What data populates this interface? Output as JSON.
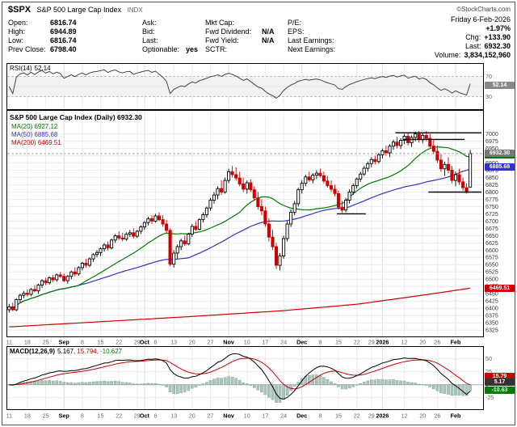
{
  "header": {
    "symbol": "$SPX",
    "name": "S&P 500 Large Cap Index",
    "exchange": "INDX",
    "copyright": "©StockCharts.com",
    "date": "Friday 6-Feb-2026",
    "pct_change": "+1.97%",
    "quote": {
      "c1": [
        {
          "l": "Open:",
          "v": "6816.74"
        },
        {
          "l": "High:",
          "v": "6944.89"
        },
        {
          "l": "Low:",
          "v": "6816.74"
        },
        {
          "l": "Prev Close:",
          "v": "6798.40"
        }
      ],
      "c2": [
        {
          "l": "Ask:",
          "v": ""
        },
        {
          "l": "Bid:",
          "v": ""
        },
        {
          "l": "Last:",
          "v": ""
        },
        {
          "l": "Optionable:",
          "v": "yes"
        }
      ],
      "c3": [
        {
          "l": "Mkt Cap:",
          "v": ""
        },
        {
          "l": "Fwd Dividend:",
          "v": "N/A"
        },
        {
          "l": "Fwd Yield:",
          "v": "N/A"
        },
        {
          "l": "SCTR:",
          "v": ""
        }
      ],
      "c4": [
        {
          "l": "P/E:",
          "v": ""
        },
        {
          "l": "EPS:",
          "v": ""
        },
        {
          "l": "Last Earnings:",
          "v": ""
        },
        {
          "l": "Next Earnings:",
          "v": ""
        }
      ],
      "c5": [
        {
          "l": "Chg:",
          "v": "+133.90"
        },
        {
          "l": "Last:",
          "v": "6932.30"
        },
        {
          "l": "Volume:",
          "v": "3,834,152,960"
        }
      ]
    }
  },
  "chart_data": {
    "type": "candlestick",
    "title": "S&P 500 Large Cap Index (Daily) 6932.30",
    "y_min": 6325,
    "y_max": 7000,
    "y_step": 25,
    "overlays": [
      {
        "label": "MA(20) 6927.12",
        "color": "#007a00"
      },
      {
        "label": "MA(50) 6885.68",
        "color": "#3333cc"
      },
      {
        "label": "MA(200) 6469.51",
        "color": "#cc0000"
      }
    ],
    "rsi": {
      "label": "RSI(14)",
      "value": "52.14",
      "bands": [
        70,
        30
      ]
    },
    "rsi_box": {
      "v": "52.14",
      "p": 52.14,
      "bg": "#888888"
    },
    "macd": {
      "label": "MACD(12,26,9)",
      "values": [
        {
          "t": "5.167,",
          "c": "#000000"
        },
        {
          "t": "15.794,",
          "c": "#cc0000"
        },
        {
          "t": "-10.627",
          "c": "#007a00"
        }
      ]
    },
    "macd_boxes": [
      {
        "v": "15.79",
        "p": 15.794,
        "bg": "#cc0000"
      },
      {
        "v": "5.17",
        "p": 5.167,
        "bg": "#333333"
      },
      {
        "v": "-10.63",
        "p": -10.627,
        "bg": "#007a00"
      }
    ],
    "price_boxes": [
      {
        "v": "6932.30",
        "p": 6932.3,
        "bg": "#777777"
      },
      {
        "v": "6927.12",
        "p": 6927.12,
        "bg": "#007a00"
      },
      {
        "v": "6885.68",
        "p": 6885.68,
        "bg": "#3333cc"
      },
      {
        "v": "6469.51",
        "p": 6469.51,
        "bg": "#cc0000"
      }
    ],
    "ticks": [
      {
        "i": 0,
        "t": "11"
      },
      {
        "i": 5,
        "t": "18"
      },
      {
        "i": 10,
        "t": "25"
      },
      {
        "i": 15,
        "t": "Sep",
        "m": 1
      },
      {
        "i": 20,
        "t": "8"
      },
      {
        "i": 25,
        "t": "15"
      },
      {
        "i": 30,
        "t": "22"
      },
      {
        "i": 35,
        "t": "29"
      },
      {
        "i": 37,
        "t": "Oct",
        "m": 1
      },
      {
        "i": 40,
        "t": "6"
      },
      {
        "i": 45,
        "t": "13"
      },
      {
        "i": 50,
        "t": "20"
      },
      {
        "i": 55,
        "t": "27"
      },
      {
        "i": 60,
        "t": "Nov",
        "m": 1
      },
      {
        "i": 65,
        "t": "10"
      },
      {
        "i": 70,
        "t": "17"
      },
      {
        "i": 75,
        "t": "24"
      },
      {
        "i": 80,
        "t": "Dec",
        "m": 1
      },
      {
        "i": 85,
        "t": "8"
      },
      {
        "i": 90,
        "t": "15"
      },
      {
        "i": 95,
        "t": "22"
      },
      {
        "i": 99,
        "t": "29"
      },
      {
        "i": 102,
        "t": "2026",
        "m": 1
      },
      {
        "i": 108,
        "t": "12"
      },
      {
        "i": 113,
        "t": "20"
      },
      {
        "i": 117,
        "t": "26"
      },
      {
        "i": 122,
        "t": "Feb",
        "m": 1
      }
    ],
    "annotations": {
      "last_price_line": 6932.3,
      "segments": [
        {
          "p": 7004,
          "a": 106,
          "b": 129
        },
        {
          "p": 6981,
          "a": 108,
          "b": 124
        },
        {
          "p": 6725,
          "a": 90,
          "b": 97
        },
        {
          "p": 6800,
          "a": 115,
          "b": 129
        }
      ]
    },
    "ma200": [
      [
        0,
        6336
      ],
      [
        25,
        6354
      ],
      [
        50,
        6372
      ],
      [
        75,
        6392
      ],
      [
        95,
        6414
      ],
      [
        110,
        6440
      ],
      [
        120,
        6458
      ],
      [
        126,
        6469.5
      ]
    ],
    "candles": [
      [
        6395,
        6415,
        6385,
        6405
      ],
      [
        6405,
        6420,
        6390,
        6395
      ],
      [
        6395,
        6435,
        6390,
        6430
      ],
      [
        6430,
        6450,
        6420,
        6445
      ],
      [
        6445,
        6460,
        6435,
        6452
      ],
      [
        6452,
        6465,
        6440,
        6448
      ],
      [
        6448,
        6470,
        6442,
        6465
      ],
      [
        6465,
        6480,
        6455,
        6460
      ],
      [
        6460,
        6485,
        6450,
        6480
      ],
      [
        6480,
        6500,
        6470,
        6495
      ],
      [
        6495,
        6505,
        6480,
        6488
      ],
      [
        6488,
        6510,
        6482,
        6505
      ],
      [
        6505,
        6515,
        6490,
        6498
      ],
      [
        6498,
        6520,
        6492,
        6515
      ],
      [
        6515,
        6525,
        6505,
        6510
      ],
      [
        6510,
        6520,
        6490,
        6495
      ],
      [
        6495,
        6515,
        6485,
        6510
      ],
      [
        6510,
        6530,
        6500,
        6525
      ],
      [
        6525,
        6540,
        6510,
        6518
      ],
      [
        6518,
        6545,
        6512,
        6540
      ],
      [
        6540,
        6560,
        6530,
        6555
      ],
      [
        6555,
        6570,
        6540,
        6548
      ],
      [
        6548,
        6575,
        6542,
        6570
      ],
      [
        6570,
        6590,
        6560,
        6585
      ],
      [
        6585,
        6600,
        6575,
        6592
      ],
      [
        6592,
        6610,
        6580,
        6605
      ],
      [
        6605,
        6625,
        6595,
        6618
      ],
      [
        6618,
        6630,
        6600,
        6608
      ],
      [
        6608,
        6640,
        6602,
        6635
      ],
      [
        6635,
        6655,
        6625,
        6650
      ],
      [
        6650,
        6665,
        6635,
        6642
      ],
      [
        6642,
        6660,
        6630,
        6638
      ],
      [
        6638,
        6662,
        6632,
        6655
      ],
      [
        6655,
        6670,
        6645,
        6660
      ],
      [
        6660,
        6675,
        6640,
        6648
      ],
      [
        6648,
        6670,
        6642,
        6665
      ],
      [
        6665,
        6685,
        6655,
        6680
      ],
      [
        6680,
        6700,
        6670,
        6695
      ],
      [
        6695,
        6715,
        6685,
        6708
      ],
      [
        6708,
        6720,
        6690,
        6700
      ],
      [
        6700,
        6725,
        6695,
        6718
      ],
      [
        6718,
        6730,
        6700,
        6705
      ],
      [
        6705,
        6720,
        6680,
        6690
      ],
      [
        6690,
        6705,
        6660,
        6668
      ],
      [
        6668,
        6675,
        6545,
        6552
      ],
      [
        6552,
        6600,
        6540,
        6590
      ],
      [
        6590,
        6620,
        6570,
        6612
      ],
      [
        6612,
        6640,
        6600,
        6632
      ],
      [
        6632,
        6650,
        6615,
        6622
      ],
      [
        6622,
        6660,
        6618,
        6655
      ],
      [
        6655,
        6690,
        6645,
        6682
      ],
      [
        6682,
        6700,
        6665,
        6672
      ],
      [
        6672,
        6710,
        6668,
        6705
      ],
      [
        6705,
        6730,
        6695,
        6722
      ],
      [
        6722,
        6750,
        6712,
        6745
      ],
      [
        6745,
        6780,
        6735,
        6772
      ],
      [
        6772,
        6800,
        6760,
        6790
      ],
      [
        6790,
        6820,
        6775,
        6812
      ],
      [
        6812,
        6840,
        6790,
        6800
      ],
      [
        6800,
        6850,
        6795,
        6840
      ],
      [
        6840,
        6880,
        6830,
        6870
      ],
      [
        6870,
        6890,
        6850,
        6860
      ],
      [
        6860,
        6885,
        6840,
        6848
      ],
      [
        6848,
        6870,
        6820,
        6828
      ],
      [
        6828,
        6850,
        6800,
        6810
      ],
      [
        6810,
        6840,
        6795,
        6832
      ],
      [
        6832,
        6845,
        6800,
        6808
      ],
      [
        6808,
        6820,
        6770,
        6780
      ],
      [
        6780,
        6800,
        6740,
        6750
      ],
      [
        6750,
        6775,
        6720,
        6735
      ],
      [
        6735,
        6750,
        6680,
        6690
      ],
      [
        6690,
        6710,
        6630,
        6645
      ],
      [
        6645,
        6670,
        6600,
        6612
      ],
      [
        6612,
        6625,
        6535,
        6548
      ],
      [
        6548,
        6590,
        6530,
        6580
      ],
      [
        6580,
        6650,
        6570,
        6640
      ],
      [
        6640,
        6700,
        6630,
        6690
      ],
      [
        6690,
        6740,
        6680,
        6730
      ],
      [
        6730,
        6770,
        6720,
        6760
      ],
      [
        6760,
        6815,
        6750,
        6808
      ],
      [
        6808,
        6840,
        6795,
        6830
      ],
      [
        6830,
        6860,
        6820,
        6852
      ],
      [
        6852,
        6870,
        6835,
        6842
      ],
      [
        6842,
        6865,
        6830,
        6858
      ],
      [
        6858,
        6875,
        6845,
        6865
      ],
      [
        6865,
        6880,
        6850,
        6856
      ],
      [
        6856,
        6870,
        6830,
        6838
      ],
      [
        6838,
        6855,
        6815,
        6822
      ],
      [
        6822,
        6840,
        6800,
        6810
      ],
      [
        6810,
        6825,
        6785,
        6795
      ],
      [
        6795,
        6805,
        6740,
        6748
      ],
      [
        6748,
        6770,
        6728,
        6738
      ],
      [
        6738,
        6780,
        6730,
        6772
      ],
      [
        6772,
        6810,
        6760,
        6800
      ],
      [
        6800,
        6830,
        6790,
        6822
      ],
      [
        6822,
        6850,
        6812,
        6845
      ],
      [
        6845,
        6870,
        6835,
        6862
      ],
      [
        6862,
        6890,
        6855,
        6882
      ],
      [
        6882,
        6905,
        6870,
        6898
      ],
      [
        6898,
        6920,
        6885,
        6912
      ],
      [
        6912,
        6925,
        6895,
        6905
      ],
      [
        6905,
        6935,
        6898,
        6928
      ],
      [
        6928,
        6950,
        6915,
        6942
      ],
      [
        6942,
        6960,
        6925,
        6935
      ],
      [
        6935,
        6965,
        6920,
        6958
      ],
      [
        6958,
        6980,
        6945,
        6972
      ],
      [
        6972,
        6990,
        6950,
        6960
      ],
      [
        6960,
        6985,
        6948,
        6978
      ],
      [
        6978,
        7000,
        6965,
        6992
      ],
      [
        6992,
        7005,
        6960,
        6970
      ],
      [
        6970,
        6995,
        6955,
        6988
      ],
      [
        6988,
        7008,
        6975,
        7000
      ],
      [
        7000,
        7010,
        6970,
        6980
      ],
      [
        6980,
        7005,
        6968,
        6995
      ],
      [
        6995,
        7010,
        6975,
        6985
      ],
      [
        6985,
        7000,
        6950,
        6958
      ],
      [
        6958,
        6980,
        6930,
        6940
      ],
      [
        6940,
        6960,
        6900,
        6910
      ],
      [
        6910,
        6930,
        6870,
        6880
      ],
      [
        6880,
        6905,
        6855,
        6895
      ],
      [
        6895,
        6920,
        6865,
        6875
      ],
      [
        6875,
        6890,
        6830,
        6840
      ],
      [
        6840,
        6870,
        6820,
        6860
      ],
      [
        6860,
        6880,
        6825,
        6835
      ],
      [
        6835,
        6850,
        6805,
        6815
      ],
      [
        6815,
        6830,
        6795,
        6798.4
      ],
      [
        6816.74,
        6944.89,
        6816.74,
        6932.3
      ]
    ]
  }
}
